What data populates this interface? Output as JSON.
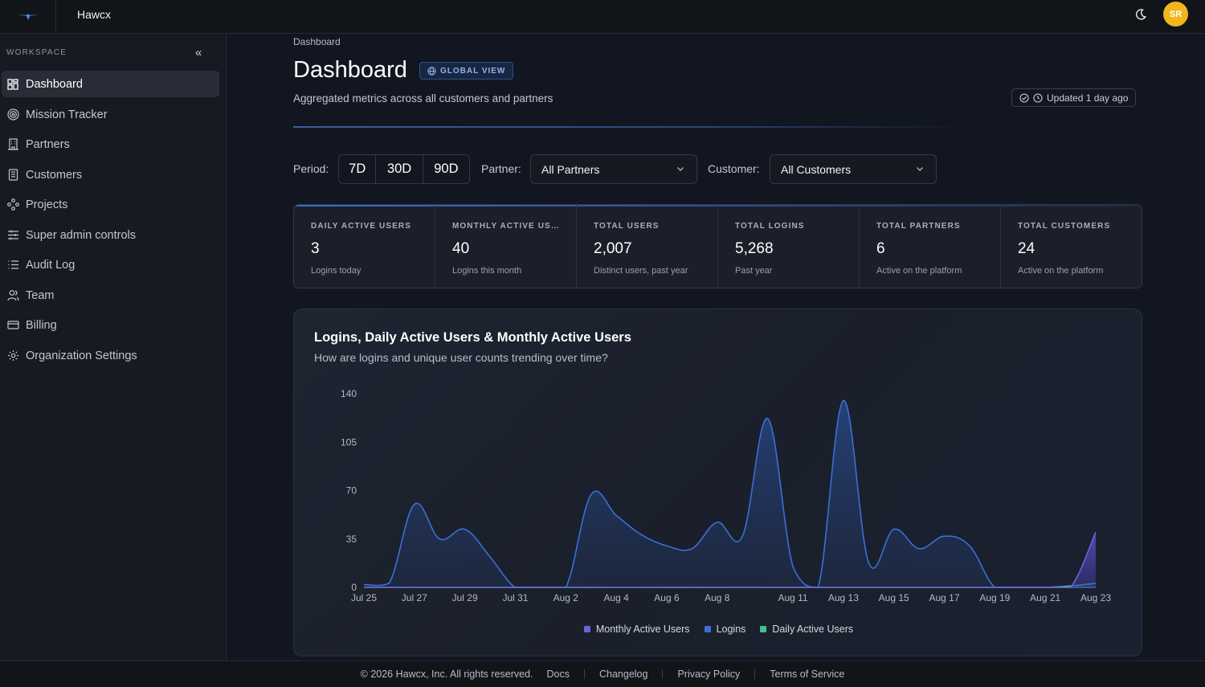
{
  "app": {
    "name": "Hawcx",
    "avatar_initials": "SR"
  },
  "sidebar": {
    "section_label": "WORKSPACE",
    "items": [
      {
        "label": "Dashboard",
        "icon": "grid-icon",
        "active": true
      },
      {
        "label": "Mission Tracker",
        "icon": "target-icon"
      },
      {
        "label": "Partners",
        "icon": "building-icon"
      },
      {
        "label": "Customers",
        "icon": "office-icon"
      },
      {
        "label": "Projects",
        "icon": "nodes-icon"
      },
      {
        "label": "Super admin controls",
        "icon": "sliders-icon"
      },
      {
        "label": "Audit Log",
        "icon": "list-icon"
      },
      {
        "label": "Team",
        "icon": "users-icon"
      },
      {
        "label": "Billing",
        "icon": "card-icon"
      },
      {
        "label": "Organization Settings",
        "icon": "gear-icon"
      }
    ]
  },
  "header": {
    "breadcrumb": "Dashboard",
    "title": "Dashboard",
    "badge": "GLOBAL VIEW",
    "subtitle": "Aggregated metrics across all customers and partners",
    "updated": "Updated 1 day ago"
  },
  "filters": {
    "period_label": "Period:",
    "periods": [
      "7D",
      "30D",
      "90D"
    ],
    "partner_label": "Partner:",
    "partner_value": "All Partners",
    "customer_label": "Customer:",
    "customer_value": "All Customers"
  },
  "stats": [
    {
      "label": "DAILY ACTIVE USERS",
      "value": "3",
      "sub": "Logins today"
    },
    {
      "label": "MONTHLY ACTIVE USE...",
      "value": "40",
      "sub": "Logins this month"
    },
    {
      "label": "TOTAL USERS",
      "value": "2,007",
      "sub": "Distinct users, past year"
    },
    {
      "label": "TOTAL LOGINS",
      "value": "5,268",
      "sub": "Past year"
    },
    {
      "label": "TOTAL PARTNERS",
      "value": "6",
      "sub": "Active on the platform"
    },
    {
      "label": "TOTAL CUSTOMERS",
      "value": "24",
      "sub": "Active on the platform"
    }
  ],
  "chart": {
    "title": "Logins, Daily Active Users & Monthly Active Users",
    "subtitle": "How are logins and unique user counts trending over time?"
  },
  "chart_data": {
    "type": "area",
    "x": [
      "Jul 25",
      "Jul 26",
      "Jul 27",
      "Jul 28",
      "Jul 29",
      "Jul 30",
      "Jul 31",
      "Aug 1",
      "Aug 2",
      "Aug 3",
      "Aug 4",
      "Aug 5",
      "Aug 6",
      "Aug 7",
      "Aug 8",
      "Aug 9",
      "Aug 10",
      "Aug 11",
      "Aug 12",
      "Aug 13",
      "Aug 14",
      "Aug 15",
      "Aug 16",
      "Aug 17",
      "Aug 18",
      "Aug 19",
      "Aug 20",
      "Aug 21",
      "Aug 22",
      "Aug 23"
    ],
    "xticks": [
      "Jul 25",
      "Jul 27",
      "Jul 29",
      "Jul 31",
      "Aug 2",
      "Aug 4",
      "Aug 6",
      "Aug 8",
      "Aug 11",
      "Aug 13",
      "Aug 15",
      "Aug 17",
      "Aug 19",
      "Aug 21",
      "Aug 23"
    ],
    "yticks": [
      0,
      35,
      70,
      105,
      140
    ],
    "ylim": [
      0,
      140
    ],
    "series": [
      {
        "name": "Monthly Active Users",
        "color": "#6a63d8",
        "values": [
          0,
          0,
          0,
          0,
          0,
          0,
          0,
          0,
          0,
          0,
          0,
          0,
          0,
          0,
          0,
          0,
          0,
          0,
          0,
          0,
          0,
          0,
          0,
          0,
          0,
          0,
          0,
          0,
          0,
          40
        ]
      },
      {
        "name": "Logins",
        "color": "#3b6fd6",
        "values": [
          2,
          3,
          60,
          35,
          42,
          22,
          0,
          0,
          0,
          67,
          52,
          38,
          30,
          28,
          47,
          37,
          122,
          15,
          0,
          135,
          18,
          42,
          28,
          37,
          30,
          0,
          0,
          0,
          0,
          0
        ]
      },
      {
        "name": "Daily Active Users",
        "color": "#3fbf8a",
        "values": [
          0,
          0,
          0,
          0,
          0,
          0,
          0,
          0,
          0,
          0,
          0,
          0,
          0,
          0,
          0,
          0,
          0,
          0,
          0,
          0,
          0,
          0,
          0,
          0,
          0,
          0,
          0,
          0,
          1,
          3
        ]
      }
    ]
  },
  "footer": {
    "copyright": "© 2026 Hawcx, Inc. All rights reserved.",
    "links": [
      "Docs",
      "Changelog",
      "Privacy Policy",
      "Terms of Service"
    ]
  }
}
